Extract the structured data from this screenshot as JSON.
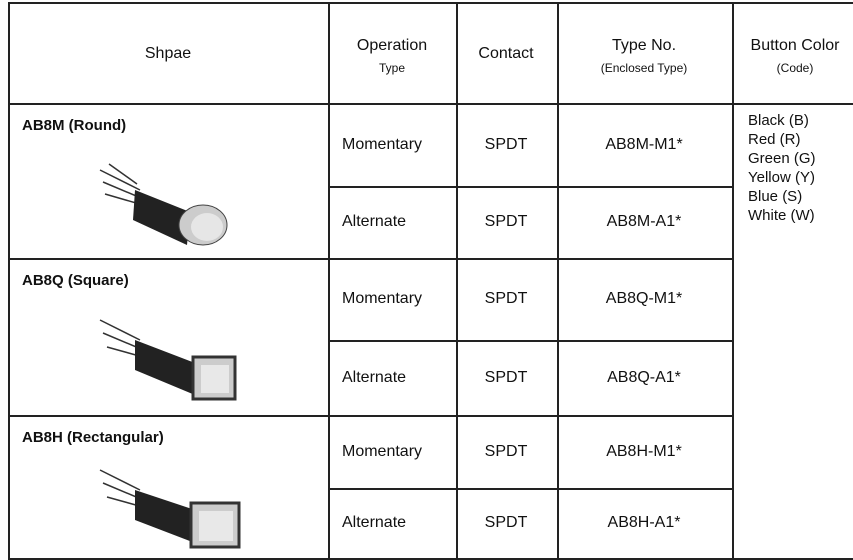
{
  "table": {
    "headers": [
      {
        "title": "Shpae"
      },
      {
        "title": "Operation",
        "subtitle": "Type"
      },
      {
        "title": "Contact"
      },
      {
        "title": "Type No.",
        "subtitle": "(Enclosed Type)"
      },
      {
        "title": "Button Color",
        "subtitle": "(Code)"
      }
    ],
    "groups": [
      {
        "shape": "AB8M (Round)",
        "rows": [
          {
            "operation": "Momentary",
            "contact": "SPDT",
            "type_no": "AB8M-M1*"
          },
          {
            "operation": "Alternate",
            "contact": "SPDT",
            "type_no": "AB8M-A1*"
          }
        ]
      },
      {
        "shape": "AB8Q (Square)",
        "rows": [
          {
            "operation": "Momentary",
            "contact": "SPDT",
            "type_no": "AB8Q-M1*"
          },
          {
            "operation": "Alternate",
            "contact": "SPDT",
            "type_no": "AB8Q-A1*"
          }
        ]
      },
      {
        "shape": "AB8H (Rectangular)",
        "rows": [
          {
            "operation": "Momentary",
            "contact": "SPDT",
            "type_no": "AB8H-M1*"
          },
          {
            "operation": "Alternate",
            "contact": "SPDT",
            "type_no": "AB8H-A1*"
          }
        ]
      }
    ],
    "colors": [
      "Black (B)",
      "Red (R)",
      "Green (G)",
      "Yellow (Y)",
      "Blue (S)",
      "White (W)"
    ]
  }
}
